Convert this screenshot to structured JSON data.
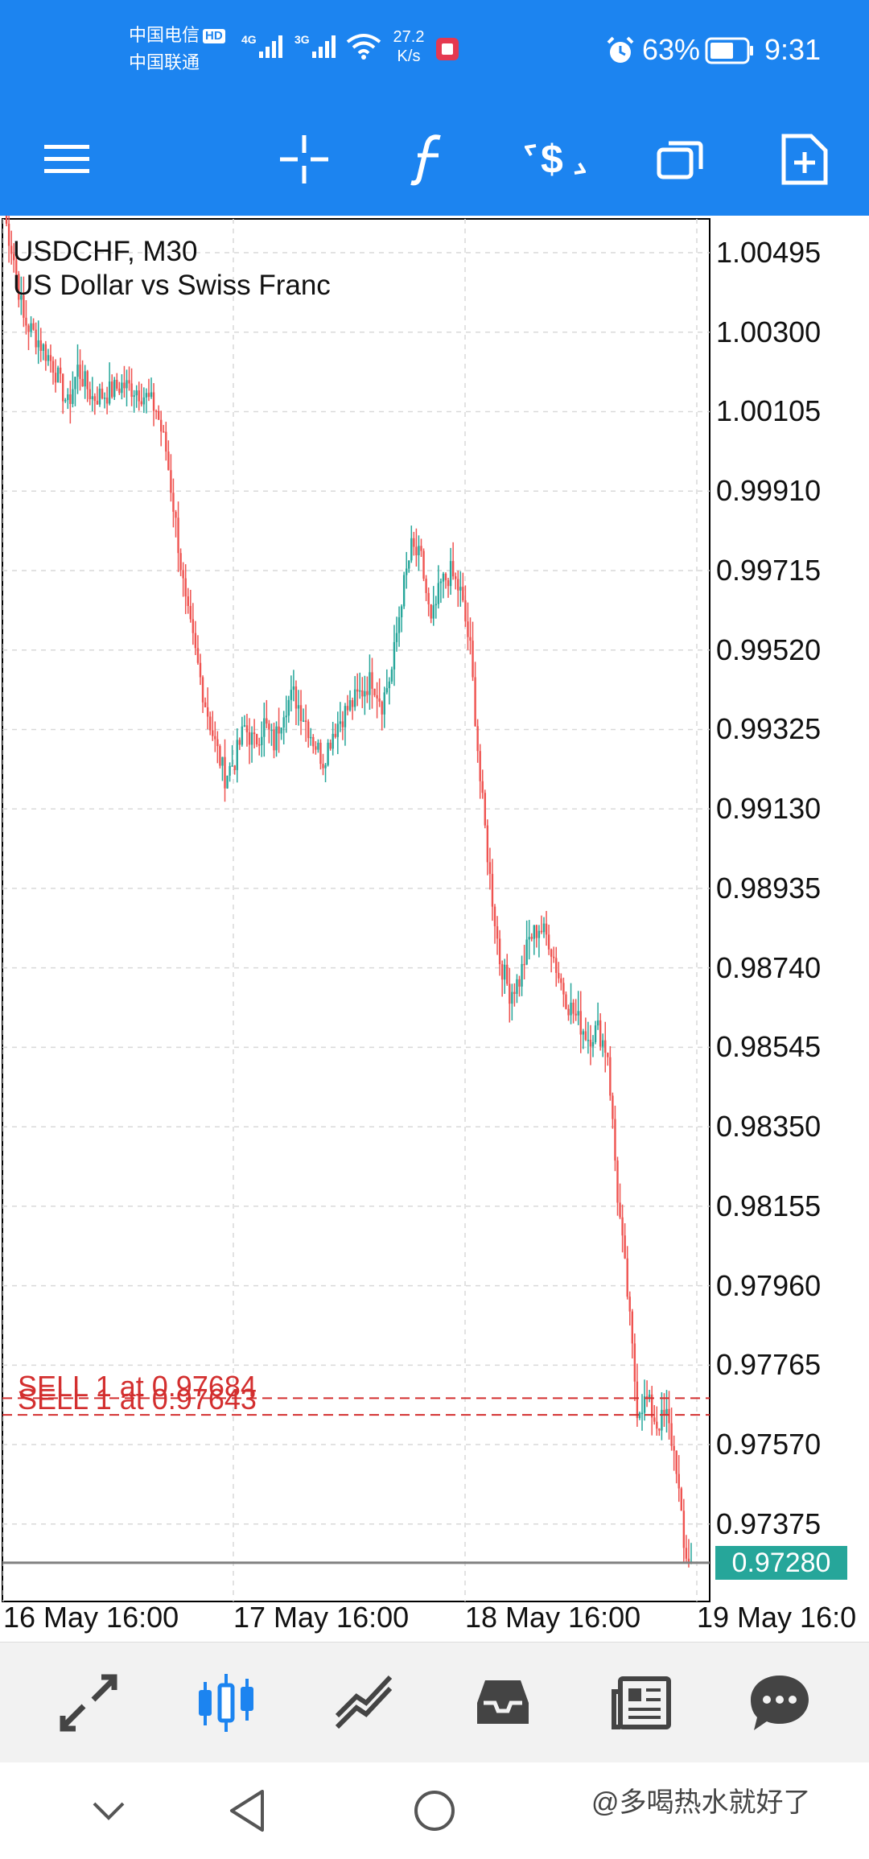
{
  "status_bar": {
    "carrier_1": "中国电信",
    "carrier_1_badge": "HD",
    "carrier_2": "中国联通",
    "signal_1_label": "4G",
    "signal_2_label": "3G",
    "speed_value": "27.2",
    "speed_unit": "K/s",
    "battery": "63%",
    "time": "9:31",
    "icons": [
      "signal-4g-icon",
      "signal-3g-icon",
      "wifi-icon",
      "notification-app-icon",
      "alarm-icon",
      "battery-icon"
    ]
  },
  "toolbar": {
    "icons": [
      "menu-icon",
      "crosshair-icon",
      "indicators-icon",
      "trade-icon",
      "windows-icon",
      "new-order-icon"
    ]
  },
  "chart": {
    "symbol_line": "USDCHF, M30",
    "description": "US Dollar vs Swiss Franc",
    "current_price": "0.97280",
    "sell_labels": [
      "SELL 1 at 0.97684",
      "SELL 1 at 0.97643"
    ],
    "y_ticks": [
      "1.00495",
      "1.00300",
      "1.00105",
      "0.99910",
      "0.99715",
      "0.99520",
      "0.99325",
      "0.99130",
      "0.98935",
      "0.98740",
      "0.98545",
      "0.98350",
      "0.98155",
      "0.97960",
      "0.97765",
      "0.97570",
      "0.97375"
    ],
    "x_ticks": [
      "16 May 16:00",
      "17 May 16:00",
      "18 May 16:00",
      "19 May 16:0"
    ],
    "colors": {
      "bull": "#26a69a",
      "bear": "#ef5350",
      "sell_line": "#d32f2f",
      "price_line": "#808080",
      "grid": "#d9d9d9"
    }
  },
  "chart_data": {
    "type": "candlestick",
    "title": "USDCHF, M30",
    "subtitle": "US Dollar vs Swiss Franc",
    "x": [
      "16 May 16:00",
      "17 May 16:00",
      "18 May 16:00",
      "19 May 16:0"
    ],
    "ylim": [
      0.9721,
      1.0063
    ],
    "close_path": [
      [
        0,
        1.0059
      ],
      [
        4,
        1.0048
      ],
      [
        8,
        1.0033
      ],
      [
        14,
        1.0028
      ],
      [
        20,
        1.0022
      ],
      [
        26,
        1.0012
      ],
      [
        30,
        1.0021
      ],
      [
        36,
        1.0014
      ],
      [
        42,
        1.0015
      ],
      [
        48,
        1.0017
      ],
      [
        54,
        1.0016
      ],
      [
        58,
        1.0014
      ],
      [
        62,
        1.0011
      ],
      [
        66,
        1.0001
      ],
      [
        70,
        0.9983
      ],
      [
        74,
        0.9963
      ],
      [
        78,
        0.9951
      ],
      [
        82,
        0.9939
      ],
      [
        86,
        0.9929
      ],
      [
        90,
        0.9921
      ],
      [
        94,
        0.9925
      ],
      [
        98,
        0.9933
      ],
      [
        102,
        0.9929
      ],
      [
        106,
        0.9934
      ],
      [
        110,
        0.9929
      ],
      [
        114,
        0.9938
      ],
      [
        118,
        0.9941
      ],
      [
        122,
        0.9936
      ],
      [
        126,
        0.993
      ],
      [
        130,
        0.9925
      ],
      [
        134,
        0.9932
      ],
      [
        138,
        0.9936
      ],
      [
        142,
        0.9939
      ],
      [
        146,
        0.9942
      ],
      [
        150,
        0.9945
      ],
      [
        154,
        0.9939
      ],
      [
        158,
        0.9947
      ],
      [
        162,
        0.9965
      ],
      [
        166,
        0.9977
      ],
      [
        170,
        0.9974
      ],
      [
        174,
        0.9958
      ],
      [
        178,
        0.9968
      ],
      [
        182,
        0.9971
      ],
      [
        186,
        0.9966
      ],
      [
        190,
        0.9952
      ],
      [
        194,
        0.992
      ],
      [
        198,
        0.9896
      ],
      [
        202,
        0.9876
      ],
      [
        206,
        0.9868
      ],
      [
        210,
        0.9871
      ],
      [
        214,
        0.9881
      ],
      [
        218,
        0.9884
      ],
      [
        222,
        0.9881
      ],
      [
        226,
        0.9872
      ],
      [
        230,
        0.9865
      ],
      [
        234,
        0.9861
      ],
      [
        238,
        0.9857
      ],
      [
        242,
        0.9859
      ],
      [
        246,
        0.9853
      ],
      [
        250,
        0.9818
      ],
      [
        254,
        0.9794
      ],
      [
        258,
        0.9766
      ],
      [
        262,
        0.9768
      ],
      [
        266,
        0.9762
      ],
      [
        270,
        0.9764
      ],
      [
        274,
        0.9752
      ],
      [
        277,
        0.9731
      ],
      [
        280,
        0.9728
      ]
    ],
    "annotations": [
      {
        "label": "SELL 1 at 0.97684",
        "y": 0.97684
      },
      {
        "label": "SELL 1 at 0.97643",
        "y": 0.97643
      },
      {
        "label": "0.97280",
        "y": 0.9728
      }
    ]
  },
  "tabbar": {
    "tabs": [
      {
        "icon": "quotes-icon",
        "active": false
      },
      {
        "icon": "chart-icon",
        "active": true
      },
      {
        "icon": "trade-icon",
        "active": false
      },
      {
        "icon": "history-icon",
        "active": false
      },
      {
        "icon": "news-icon",
        "active": false
      },
      {
        "icon": "messages-icon",
        "active": false
      }
    ]
  },
  "system_nav": {
    "icons": [
      "collapse-icon",
      "back-icon",
      "home-icon"
    ],
    "watermark": "@多喝热水就好了"
  }
}
